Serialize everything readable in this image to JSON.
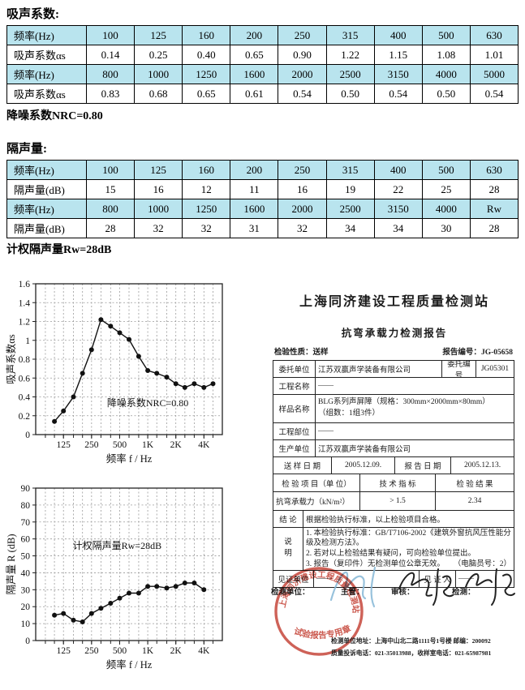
{
  "sections": {
    "absorption_title": "吸声系数:",
    "absorption_note": "降噪系数NRC=0.80",
    "insulation_title": "隔声量:",
    "insulation_note": "计权隔声量Rw=28dB"
  },
  "colors": {
    "table_header_bg": "#b9e4ee",
    "stamp_red": "#c23b2e",
    "signature_blue": "#86b7d6",
    "signature_black": "#222222"
  },
  "absorption_table": {
    "rows": [
      {
        "header": true,
        "cells": [
          "频率(Hz)",
          "100",
          "125",
          "160",
          "200",
          "250",
          "315",
          "400",
          "500",
          "630"
        ]
      },
      {
        "header": false,
        "cells": [
          "吸声系数αs",
          "0.14",
          "0.25",
          "0.40",
          "0.65",
          "0.90",
          "1.22",
          "1.15",
          "1.08",
          "1.01"
        ]
      },
      {
        "header": true,
        "cells": [
          "频率(Hz)",
          "800",
          "1000",
          "1250",
          "1600",
          "2000",
          "2500",
          "3150",
          "4000",
          "5000"
        ]
      },
      {
        "header": false,
        "cells": [
          "吸声系数αs",
          "0.83",
          "0.68",
          "0.65",
          "0.61",
          "0.54",
          "0.50",
          "0.54",
          "0.50",
          "0.54"
        ]
      }
    ]
  },
  "insulation_table": {
    "rows": [
      {
        "header": true,
        "cells": [
          "频率(Hz)",
          "100",
          "125",
          "160",
          "200",
          "250",
          "315",
          "400",
          "500",
          "630"
        ]
      },
      {
        "header": false,
        "cells": [
          "隔声量(dB)",
          "15",
          "16",
          "12",
          "11",
          "16",
          "19",
          "22",
          "25",
          "28"
        ]
      },
      {
        "header": true,
        "cells": [
          "频率(Hz)",
          "800",
          "1000",
          "1250",
          "1600",
          "2000",
          "2500",
          "3150",
          "4000",
          "Rw"
        ]
      },
      {
        "header": false,
        "cells": [
          "隔声量(dB)",
          "28",
          "32",
          "32",
          "31",
          "32",
          "34",
          "34",
          "30",
          "28"
        ]
      }
    ]
  },
  "chart_data": [
    {
      "type": "line",
      "title": "",
      "x": [
        100,
        125,
        160,
        200,
        250,
        315,
        400,
        500,
        630,
        800,
        1000,
        1250,
        1600,
        2000,
        2500,
        3150,
        4000,
        5000
      ],
      "values": [
        0.14,
        0.25,
        0.4,
        0.65,
        0.9,
        1.22,
        1.15,
        1.08,
        1.01,
        0.83,
        0.68,
        0.65,
        0.61,
        0.54,
        0.5,
        0.54,
        0.5,
        0.54
      ],
      "xlabel": "频率 f / Hz",
      "ylabel": "吸声系数αs",
      "annotation": "降噪系数NRC=0.80",
      "annotation_pos": [
        1000,
        0.3
      ],
      "xscale": "log",
      "ylim": [
        0,
        1.6
      ],
      "ytick_step": 0.2,
      "yticklabels": [
        "0",
        "0.2",
        "0.4",
        "0.6",
        "0.8",
        "1",
        "1.2",
        "1.4",
        "1.6"
      ],
      "xticks": [
        125,
        250,
        500,
        1000,
        2000,
        4000
      ],
      "xticklabels": [
        "125",
        "250",
        "500",
        "1K",
        "2K",
        "4K"
      ],
      "grid": true,
      "legend": "none"
    },
    {
      "type": "line",
      "title": "",
      "x": [
        100,
        125,
        160,
        200,
        250,
        315,
        400,
        500,
        630,
        800,
        1000,
        1250,
        1600,
        2000,
        2500,
        3150,
        4000
      ],
      "values": [
        15,
        16,
        12,
        11,
        16,
        19,
        22,
        25,
        28,
        28,
        32,
        32,
        31,
        32,
        34,
        34,
        30
      ],
      "xlabel": "频率 f / Hz",
      "ylabel": "隔声量 R (dB)",
      "annotation": "计权隔声量Rw=28dB",
      "annotation_pos": [
        470,
        54
      ],
      "xscale": "log",
      "ylim": [
        0,
        90
      ],
      "ytick_step": 10,
      "yticklabels": [
        "0",
        "10",
        "20",
        "30",
        "40",
        "50",
        "60",
        "70",
        "80",
        "90"
      ],
      "xticks": [
        125,
        250,
        500,
        1000,
        2000,
        4000
      ],
      "xticklabels": [
        "125",
        "250",
        "500",
        "1K",
        "2K",
        "4K"
      ],
      "grid": true,
      "legend": "none"
    }
  ],
  "report": {
    "station_title": "上海同济建设工程质量检测站",
    "report_title": "抗弯承载力检测报告",
    "nature_label": "检验性质：",
    "nature_value": "送样",
    "no_label": "报告编号：",
    "no_value": "JG-05658",
    "client_label": "委托单位",
    "client_value": "江苏双赢声学装备有限公司",
    "client_no_label": "委托编号",
    "client_no_value": "JG05301",
    "project_label": "工程名称",
    "project_value": "——",
    "sample_label": "样品名称",
    "sample_value": "BLG系列声屏障（规格：300mm×2000mm×80mm）\n（组数：1组3件）",
    "part_label": "工程部位",
    "part_value": "——",
    "producer_label": "生产单位",
    "producer_value": "江苏双赢声学装备有限公司",
    "sample_date_label": "送 样 日 期",
    "sample_date_value": "2005.12.09.",
    "report_date_label": "报 告 日 期",
    "report_date_value": "2005.12.13.",
    "item_header": "检 验 项 目（单 位）",
    "spec_header": "技 术 指 标",
    "result_header": "检 验 结 果",
    "item_value": "抗弯承载力（kN/m²）",
    "spec_value": "> 1.5",
    "result_value": "2.34",
    "conclusion_label": "结  论",
    "conclusion_value": "根据检验执行标准，以上检验项目合格。",
    "notes_label": "说\n明",
    "notes": [
      "1. 本检验执行标准：GB/T7106-2002《建筑外窗抗风压性能分级及检测方法》。",
      "2. 若对以上检验结果有疑问，可向检验单位提出。",
      "3. 报告（复印件）无检测单位公章无效。"
    ],
    "computer_no": "（电脑员号：2）",
    "witness_unit_label": "见证单位",
    "witness_unit_value": "——",
    "witness_person_label": "见 证 人",
    "witness_person_value": "——",
    "sign_unit_label": "检测单位：",
    "sign_manager_label": "主管：",
    "sign_reviewer_label": "审核：",
    "sign_tester_label": "检测：",
    "stamp": {
      "arc_text": "上海同济建设工程质量检测站",
      "bottom_text": "试验报告专用章"
    },
    "footer_address": "检测单位地址：上海中山北二路1111号1号楼 邮编：200092",
    "footer_phones": "质量投诉电话：021-35013988，收样室电话：021-65987981"
  }
}
